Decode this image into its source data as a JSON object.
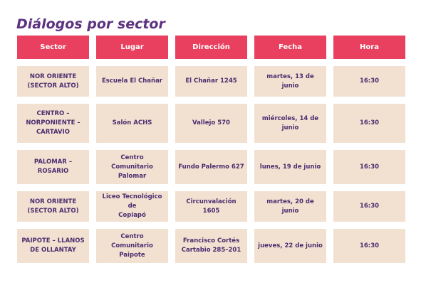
{
  "title": "Diálogos por sector",
  "colors": {
    "title": "#5c3180",
    "header_bg": "#e8405e",
    "header_text": "#ffffff",
    "cell_bg": "#f2e1d1",
    "cell_text": "#4a2d6e"
  },
  "table": {
    "headers": [
      "Sector",
      "Lugar",
      "Dirección",
      "Fecha",
      "Hora"
    ],
    "rows": [
      [
        "NOR ORIENTE\n(SECTOR ALTO)",
        "Escuela El Chañar",
        "El Chañar 1245",
        "martes, 13 de junio",
        "16:30"
      ],
      [
        "CENTRO –\nNORPONIENTE –\nCARTAVIO",
        "Salón ACHS",
        "Vallejo 570",
        "miércoles, 14 de\njunio",
        "16:30"
      ],
      [
        "PALOMAR – ROSARIO",
        "Centro Comunitario\nPalomar",
        "Fundo Palermo 627",
        "lunes, 19 de junio",
        "16:30"
      ],
      [
        "NOR ORIENTE\n(SECTOR ALTO)",
        "Liceo Tecnológico de\nCopiapó",
        "Circunvalación 1605",
        "martes, 20 de junio",
        "16:30"
      ],
      [
        "PAIPOTE – LLANOS\nDE OLLANTAY",
        "Centro Comunitario\nPaipote",
        "Francisco Cortés\nCartabio 285–201",
        "jueves, 22 de junio",
        "16:30"
      ]
    ]
  }
}
